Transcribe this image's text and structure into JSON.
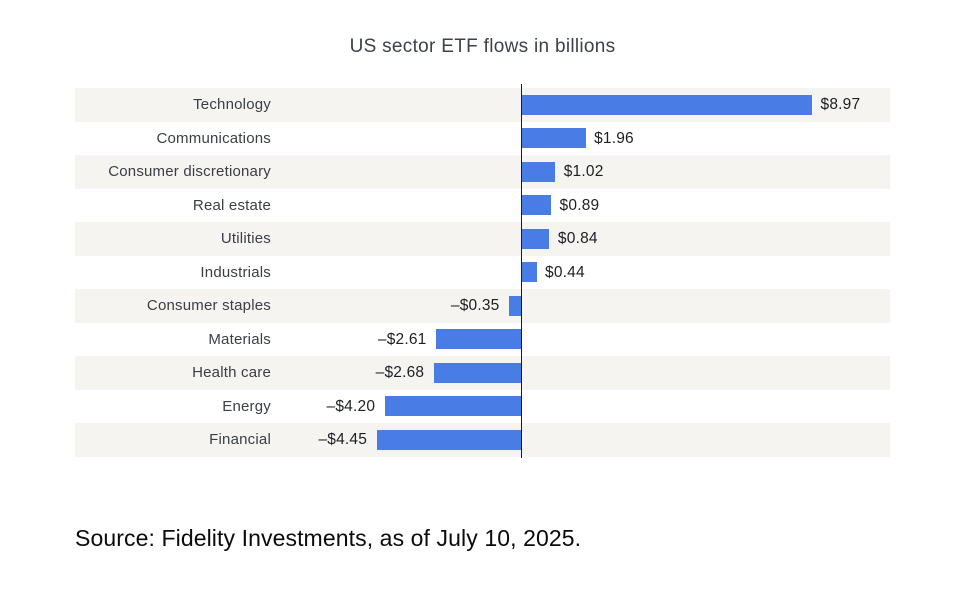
{
  "chart_data": {
    "type": "bar",
    "orientation": "horizontal",
    "title": "US sector ETF flows in billions",
    "categories": [
      "Technology",
      "Communications",
      "Consumer discretionary",
      "Real estate",
      "Utilities",
      "Industrials",
      "Consumer staples",
      "Materials",
      "Health care",
      "Energy",
      "Financial"
    ],
    "values": [
      8.97,
      1.96,
      1.02,
      0.89,
      0.84,
      0.44,
      -0.35,
      -2.61,
      -2.68,
      -4.2,
      -4.45
    ],
    "value_labels": [
      "$8.97",
      "$1.96",
      "$1.02",
      "$0.89",
      "$0.84",
      "$0.44",
      "–$0.35",
      "–$2.61",
      "–$2.68",
      "–$4.20",
      "–$4.45"
    ],
    "xlabel": "",
    "ylabel": "",
    "xlim": [
      -13.8,
      11.4
    ],
    "grid": false,
    "legend": false,
    "zero_line": true,
    "bar_color": "#4a7ce6",
    "row_stripe_color": "#f5f4f1",
    "zero_line_color": "#1b1c1e"
  },
  "source_note": "Source: Fidelity Investments, as of July 10, 2025."
}
